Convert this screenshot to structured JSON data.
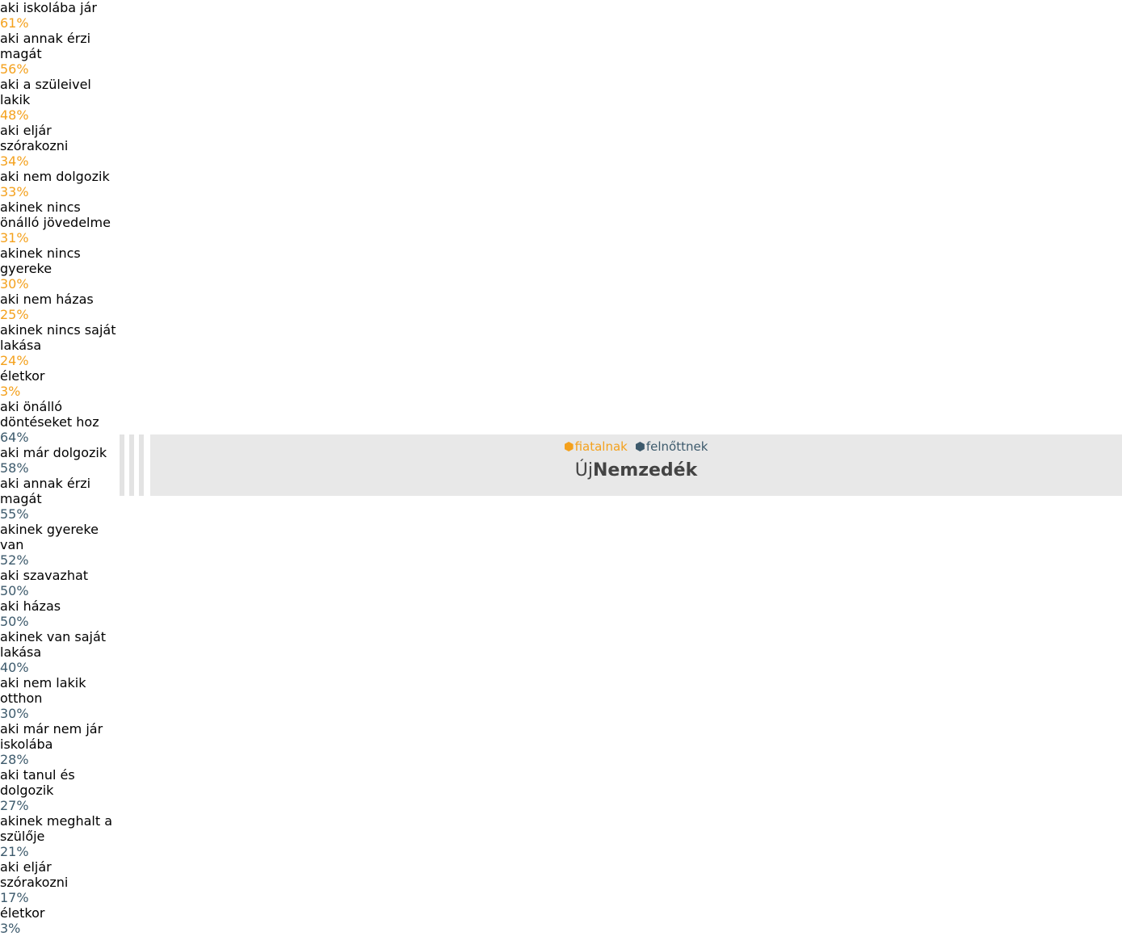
{
  "chart_data": [
    {
      "type": "bar",
      "orientation": "horizontal",
      "color": "#f4a11d",
      "categories": [
        "aki iskolába jár",
        "aki annak érzi magát",
        "aki a szüleivel lakik",
        "aki eljár szórakozni",
        "aki nem dolgozik",
        "akinek nincs önálló jövedelme",
        "akinek nincs gyereke",
        "aki nem házas",
        "akinek nincs saját lakása",
        "életkor"
      ],
      "values": [
        61,
        56,
        48,
        34,
        33,
        31,
        30,
        25,
        24,
        3
      ],
      "value_labels": [
        "61%",
        "56%",
        "48%",
        "34%",
        "33%",
        "31%",
        "30%",
        "25%",
        "24%",
        "3%"
      ],
      "xlim": [
        0,
        100
      ]
    },
    {
      "type": "bar",
      "orientation": "horizontal",
      "color": "#3d5a6c",
      "categories": [
        "aki önálló döntéseket hoz",
        "aki már dolgozik",
        "aki annak érzi magát",
        "akinek gyereke van",
        "aki szavazhat",
        "aki házas",
        "akinek van saját lakása",
        "aki nem lakik otthon",
        "aki már nem jár iskolába",
        "aki tanul és dolgozik",
        "akinek meghalt a szülője",
        "aki eljár szórakozni",
        "életkor"
      ],
      "values": [
        64,
        58,
        55,
        52,
        50,
        50,
        40,
        30,
        28,
        27,
        21,
        17,
        3
      ],
      "value_labels": [
        "64%",
        "58%",
        "55%",
        "52%",
        "50%",
        "50%",
        "40%",
        "30%",
        "28%",
        "27%",
        "21%",
        "17%",
        "3%"
      ],
      "xlim": [
        0,
        100
      ]
    }
  ],
  "legend": [
    {
      "name": "fiatalnak",
      "color": "#f4a11d"
    },
    {
      "name": "felnőttnek",
      "color": "#3d5a6c"
    }
  ],
  "brand": {
    "prefix": "Új",
    "name": "Nemzedék"
  }
}
